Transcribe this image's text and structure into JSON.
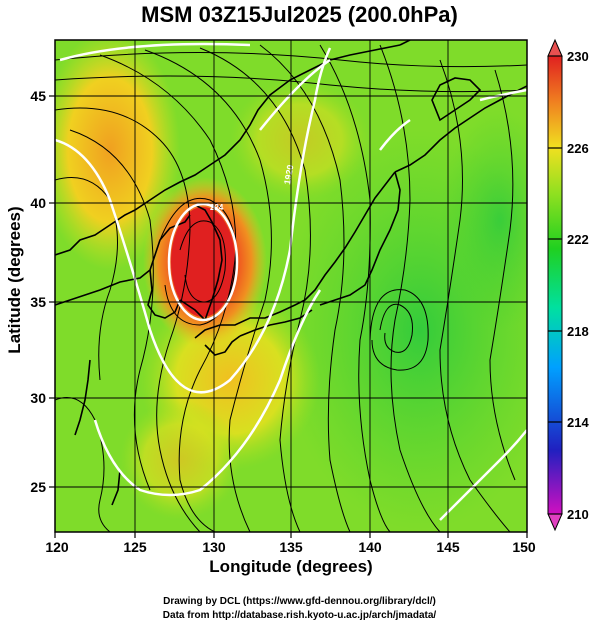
{
  "title": "MSM 03Z15Jul2025 (200.0hPa)",
  "axes": {
    "xlabel": "Longitude (degrees)",
    "ylabel": "Latitude  (degrees)",
    "xticks": [
      120,
      125,
      130,
      135,
      140,
      145,
      150
    ],
    "yticks": [
      25,
      30,
      35,
      40,
      45
    ],
    "xlim": [
      120,
      150
    ],
    "ylim": [
      22.5,
      47.5
    ]
  },
  "colorbar": {
    "ticks": [
      230,
      226,
      222,
      218,
      214,
      210
    ],
    "range": [
      210,
      230
    ],
    "colors": [
      "#d010c0",
      "#2020c0",
      "#00a0ff",
      "#00e0a0",
      "#20d020",
      "#90e020",
      "#f0e020",
      "#f08020",
      "#e02020"
    ]
  },
  "contour_labels": [
    "1920",
    "224"
  ],
  "credits": {
    "line1": "Drawing by DCL (https://www.gfd-dennou.org/library/dcl/)",
    "line2": "Data from http://database.rish.kyoto-u.ac.jp/arch/jmadata/"
  },
  "chart_data": {
    "type": "heatmap",
    "title": "MSM 03Z15Jul2025 (200.0hPa)",
    "xlabel": "Longitude (degrees)",
    "ylabel": "Latitude  (degrees)",
    "xlim": [
      120,
      150
    ],
    "ylim": [
      22.5,
      47.5
    ],
    "color_range": [
      210,
      230
    ],
    "features": [
      {
        "kind": "max",
        "lon": 129.5,
        "lat": 37.5,
        "value": 229
      },
      {
        "kind": "ridge",
        "lon": 124,
        "lat": 42,
        "value": 226
      },
      {
        "kind": "low",
        "lon": 141,
        "lat": 33.5,
        "value": 222
      },
      {
        "kind": "low",
        "lon": 147,
        "lat": 40,
        "value": 221
      }
    ]
  }
}
